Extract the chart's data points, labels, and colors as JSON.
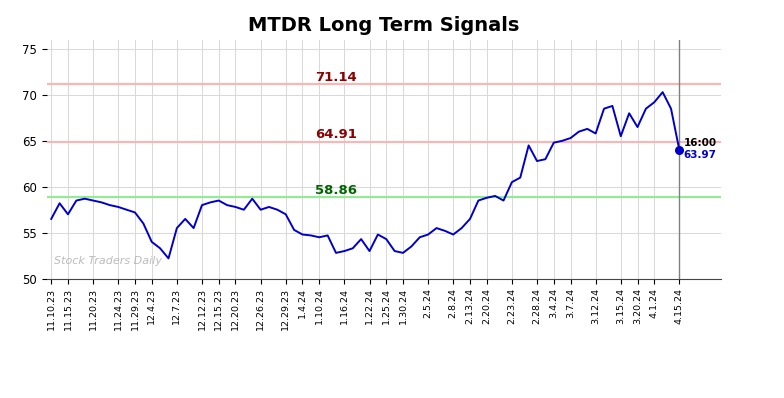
{
  "title": "MTDR Long Term Signals",
  "title_fontsize": 14,
  "title_fontweight": "bold",
  "ylim": [
    50,
    76
  ],
  "yticks": [
    50,
    55,
    60,
    65,
    70,
    75
  ],
  "line_color": "#0000cc",
  "line_width": 1.4,
  "hline_upper": 71.14,
  "hline_upper_color": "#ffb3b3",
  "hline_upper_label_color": "#8b0000",
  "hline_upper_label": "71.14",
  "hline_middle": 64.91,
  "hline_middle_color": "#ffb3b3",
  "hline_middle_label_color": "#8b0000",
  "hline_middle_label": "64.91",
  "hline_lower": 58.86,
  "hline_lower_color": "#90ee90",
  "hline_lower_label_color": "#006400",
  "hline_lower_label": "58.86",
  "endpoint_value": 63.97,
  "watermark": "Stock Traders Daily",
  "watermark_color": "#b0b0b0",
  "bg_color": "#ffffff",
  "grid_color": "#d8d8d8",
  "last_bar_color": "#808080",
  "x_labels": [
    "11.10.23",
    "11.15.23",
    "11.20.23",
    "11.24.23",
    "11.29.23",
    "12.4.23",
    "12.7.23",
    "12.12.23",
    "12.15.23",
    "12.20.23",
    "12.26.23",
    "12.29.23",
    "1.4.24",
    "1.10.24",
    "1.16.24",
    "1.22.24",
    "1.25.24",
    "1.30.24",
    "2.5.24",
    "2.8.24",
    "2.13.24",
    "2.20.24",
    "2.23.24",
    "2.28.24",
    "3.4.24",
    "3.7.24",
    "3.12.24",
    "3.15.24",
    "3.20.24",
    "4.1.24",
    "4.15.24"
  ],
  "y_values": [
    56.5,
    58.2,
    57.0,
    58.5,
    58.7,
    58.5,
    58.3,
    58.0,
    57.8,
    57.5,
    57.2,
    56.0,
    54.0,
    53.3,
    52.2,
    55.5,
    56.5,
    55.5,
    58.0,
    58.3,
    58.5,
    58.0,
    57.8,
    57.5,
    58.7,
    57.5,
    57.8,
    57.5,
    57.0,
    55.3,
    54.8,
    54.7,
    54.5,
    54.7,
    52.8,
    53.0,
    53.3,
    54.3,
    53.0,
    54.8,
    54.3,
    53.0,
    52.8,
    53.5,
    54.5,
    54.8,
    55.5,
    55.2,
    54.8,
    55.5,
    56.5,
    58.5,
    58.8,
    59.0,
    58.5,
    60.5,
    61.0,
    64.5,
    62.8,
    63.0,
    64.8,
    65.0,
    65.3,
    66.0,
    66.3,
    65.8,
    68.5,
    68.8,
    65.5,
    68.0,
    66.5,
    68.5,
    69.2,
    70.3,
    68.5,
    63.97
  ]
}
